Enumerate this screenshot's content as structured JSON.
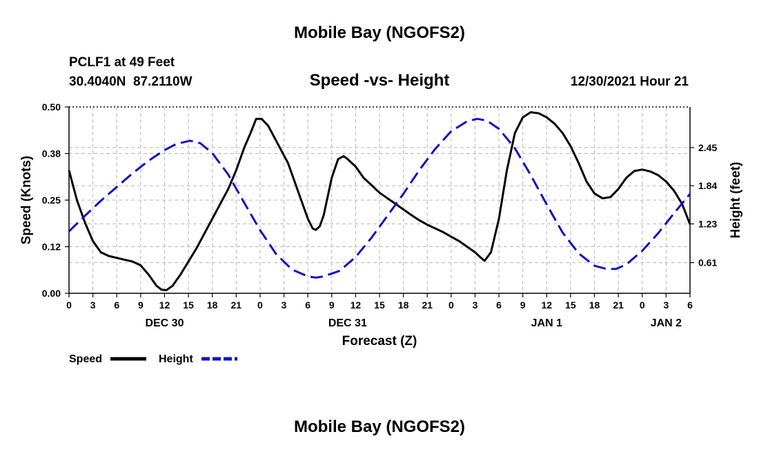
{
  "page": {
    "title": "Mobile Bay (NGOFS2)",
    "station": "PCLF1 at 49 Feet",
    "coords": "30.4040N  87.2110W",
    "chart_title": "Speed -vs- Height",
    "timestamp": "12/30/2021 Hour 21",
    "footer_title": "Mobile Bay (NGOFS2)"
  },
  "chart_data": {
    "type": "line",
    "title": "Speed -vs- Height",
    "xlabel": "Forecast (Z)",
    "ylabel": "Speed (Knots)",
    "ylabel_right": "Height (feet)",
    "x_hours": [
      0,
      78
    ],
    "ylim": [
      0,
      0.5
    ],
    "y2lim": [
      0.12,
      3.1
    ],
    "grid": true,
    "legend_position": "bottom-left",
    "x_ticks": [
      {
        "h": 0,
        "label": "0"
      },
      {
        "h": 3,
        "label": "3"
      },
      {
        "h": 6,
        "label": "6"
      },
      {
        "h": 9,
        "label": "9"
      },
      {
        "h": 12,
        "label": "12"
      },
      {
        "h": 15,
        "label": "15"
      },
      {
        "h": 18,
        "label": "18"
      },
      {
        "h": 21,
        "label": "21"
      },
      {
        "h": 24,
        "label": "0"
      },
      {
        "h": 27,
        "label": "3"
      },
      {
        "h": 30,
        "label": "6"
      },
      {
        "h": 33,
        "label": "9"
      },
      {
        "h": 36,
        "label": "12"
      },
      {
        "h": 39,
        "label": "15"
      },
      {
        "h": 42,
        "label": "18"
      },
      {
        "h": 45,
        "label": "21"
      },
      {
        "h": 48,
        "label": "0"
      },
      {
        "h": 51,
        "label": "3"
      },
      {
        "h": 54,
        "label": "6"
      },
      {
        "h": 57,
        "label": "9"
      },
      {
        "h": 60,
        "label": "12"
      },
      {
        "h": 63,
        "label": "15"
      },
      {
        "h": 66,
        "label": "18"
      },
      {
        "h": 69,
        "label": "21"
      },
      {
        "h": 72,
        "label": "0"
      },
      {
        "h": 75,
        "label": "3"
      },
      {
        "h": 78,
        "label": "6"
      }
    ],
    "day_labels": [
      {
        "h": 12,
        "label": "DEC 30"
      },
      {
        "h": 35,
        "label": "DEC 31"
      },
      {
        "h": 60,
        "label": "JAN 1"
      },
      {
        "h": 75,
        "label": "JAN 2"
      }
    ],
    "y_ticks": [
      {
        "v": 0.0,
        "label": "0.00"
      },
      {
        "v": 0.125,
        "label": "0.12"
      },
      {
        "v": 0.25,
        "label": "0.25"
      },
      {
        "v": 0.375,
        "label": "0.38"
      },
      {
        "v": 0.5,
        "label": "0.50"
      }
    ],
    "y2_ticks": [
      {
        "v": 0.61,
        "label": "0.61"
      },
      {
        "v": 1.23,
        "label": "1.23"
      },
      {
        "v": 1.84,
        "label": "1.84"
      },
      {
        "v": 2.45,
        "label": "2.45"
      }
    ],
    "series": [
      {
        "name": "Speed",
        "color": "#000000",
        "axis": "left",
        "dash": "solid",
        "points": [
          [
            0,
            0.33
          ],
          [
            1,
            0.25
          ],
          [
            2,
            0.19
          ],
          [
            3,
            0.14
          ],
          [
            4,
            0.11
          ],
          [
            5,
            0.1
          ],
          [
            6,
            0.095
          ],
          [
            7,
            0.09
          ],
          [
            8,
            0.085
          ],
          [
            9,
            0.075
          ],
          [
            10,
            0.05
          ],
          [
            11,
            0.02
          ],
          [
            11.6,
            0.01
          ],
          [
            12.2,
            0.008
          ],
          [
            13,
            0.02
          ],
          [
            14,
            0.05
          ],
          [
            16,
            0.12
          ],
          [
            18,
            0.2
          ],
          [
            20,
            0.28
          ],
          [
            21,
            0.33
          ],
          [
            22,
            0.39
          ],
          [
            22.8,
            0.43
          ],
          [
            23.5,
            0.468
          ],
          [
            24.2,
            0.468
          ],
          [
            25,
            0.45
          ],
          [
            26,
            0.41
          ],
          [
            27,
            0.37
          ],
          [
            27.5,
            0.35
          ],
          [
            28,
            0.32
          ],
          [
            29,
            0.26
          ],
          [
            30,
            0.2
          ],
          [
            30.6,
            0.174
          ],
          [
            31,
            0.17
          ],
          [
            31.5,
            0.18
          ],
          [
            32,
            0.21
          ],
          [
            33,
            0.31
          ],
          [
            33.8,
            0.36
          ],
          [
            34.5,
            0.368
          ],
          [
            35,
            0.36
          ],
          [
            36,
            0.34
          ],
          [
            37,
            0.31
          ],
          [
            38,
            0.29
          ],
          [
            39,
            0.27
          ],
          [
            40,
            0.255
          ],
          [
            41,
            0.24
          ],
          [
            42,
            0.225
          ],
          [
            43,
            0.21
          ],
          [
            44,
            0.196
          ],
          [
            45,
            0.184
          ],
          [
            46,
            0.174
          ],
          [
            47,
            0.164
          ],
          [
            48,
            0.152
          ],
          [
            49,
            0.14
          ],
          [
            50,
            0.125
          ],
          [
            51,
            0.11
          ],
          [
            51.6,
            0.098
          ],
          [
            52.2,
            0.087
          ],
          [
            53,
            0.11
          ],
          [
            54,
            0.2
          ],
          [
            55,
            0.33
          ],
          [
            56,
            0.43
          ],
          [
            57,
            0.472
          ],
          [
            58,
            0.486
          ],
          [
            59,
            0.483
          ],
          [
            60,
            0.472
          ],
          [
            61,
            0.455
          ],
          [
            62,
            0.43
          ],
          [
            63,
            0.395
          ],
          [
            64,
            0.35
          ],
          [
            65,
            0.3
          ],
          [
            66,
            0.268
          ],
          [
            67,
            0.255
          ],
          [
            68,
            0.258
          ],
          [
            69,
            0.28
          ],
          [
            70,
            0.31
          ],
          [
            71,
            0.328
          ],
          [
            72,
            0.332
          ],
          [
            73,
            0.327
          ],
          [
            74,
            0.317
          ],
          [
            75,
            0.3
          ],
          [
            76,
            0.275
          ],
          [
            77,
            0.24
          ],
          [
            78,
            0.185
          ]
        ]
      },
      {
        "name": "Height",
        "color": "#1010c8",
        "axis": "right",
        "dash": "dashed",
        "points": [
          [
            0,
            1.11
          ],
          [
            2,
            1.36
          ],
          [
            4,
            1.6
          ],
          [
            6,
            1.82
          ],
          [
            8,
            2.04
          ],
          [
            10,
            2.24
          ],
          [
            12,
            2.41
          ],
          [
            13.5,
            2.51
          ],
          [
            15.2,
            2.56
          ],
          [
            16.5,
            2.52
          ],
          [
            18,
            2.36
          ],
          [
            20,
            2.02
          ],
          [
            22,
            1.57
          ],
          [
            24,
            1.13
          ],
          [
            26,
            0.75
          ],
          [
            28,
            0.5
          ],
          [
            30,
            0.39
          ],
          [
            31,
            0.37
          ],
          [
            32,
            0.39
          ],
          [
            34,
            0.48
          ],
          [
            36,
            0.7
          ],
          [
            38,
            1.01
          ],
          [
            40,
            1.36
          ],
          [
            42,
            1.71
          ],
          [
            44,
            2.09
          ],
          [
            46,
            2.43
          ],
          [
            48,
            2.71
          ],
          [
            50,
            2.87
          ],
          [
            51.3,
            2.91
          ],
          [
            52.5,
            2.88
          ],
          [
            54,
            2.75
          ],
          [
            56,
            2.44
          ],
          [
            58,
            2.01
          ],
          [
            60,
            1.54
          ],
          [
            62,
            1.09
          ],
          [
            64,
            0.76
          ],
          [
            66,
            0.56
          ],
          [
            67.5,
            0.51
          ],
          [
            68.7,
            0.51
          ],
          [
            70,
            0.58
          ],
          [
            72,
            0.8
          ],
          [
            74,
            1.08
          ],
          [
            76,
            1.4
          ],
          [
            78,
            1.71
          ]
        ]
      }
    ]
  }
}
